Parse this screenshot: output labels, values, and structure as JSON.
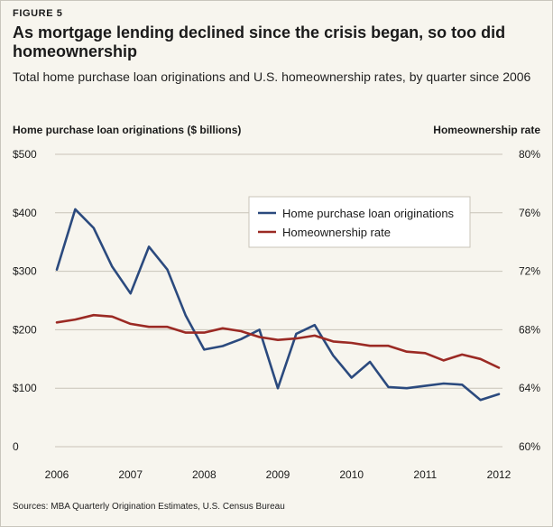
{
  "figure_label": "FIGURE 5",
  "title": "As mortgage lending declined since the crisis began, so too did homeownership",
  "subtitle": "Total home purchase loan originations and U.S. homeownership rates, by quarter since 2006",
  "source": "Sources: MBA Quarterly Origination Estimates, U.S. Census Bureau",
  "colors": {
    "originations": "#2b4a7e",
    "homeownership": "#9b2a24",
    "grid": "#c8c4b8"
  },
  "chart_data": {
    "type": "line",
    "y_left_label": "Home purchase loan originations ($ billions)",
    "y_right_label": "Homeownership rate",
    "ylim_left": [
      0,
      500
    ],
    "ylim_right": [
      60,
      80
    ],
    "xlim": [
      2006,
      2012
    ],
    "x_ticks": [
      {
        "value": 2006,
        "label": "2006"
      },
      {
        "value": 2007,
        "label": "2007"
      },
      {
        "value": 2008,
        "label": "2008"
      },
      {
        "value": 2009,
        "label": "2009"
      },
      {
        "value": 2010,
        "label": "2010"
      },
      {
        "value": 2011,
        "label": "2011"
      },
      {
        "value": 2012,
        "label": "2012"
      }
    ],
    "y_left_ticks": [
      {
        "value": 0,
        "label": "0"
      },
      {
        "value": 100,
        "label": "$100"
      },
      {
        "value": 200,
        "label": "$200"
      },
      {
        "value": 300,
        "label": "$300"
      },
      {
        "value": 400,
        "label": "$400"
      },
      {
        "value": 500,
        "label": "$500"
      }
    ],
    "y_right_ticks": [
      {
        "value": 60,
        "label": "60%"
      },
      {
        "value": 64,
        "label": "64%"
      },
      {
        "value": 68,
        "label": "68%"
      },
      {
        "value": 72,
        "label": "72%"
      },
      {
        "value": 76,
        "label": "76%"
      },
      {
        "value": 80,
        "label": "80%"
      }
    ],
    "legend_position": "upper-right",
    "series": [
      {
        "name": "Home purchase loan originations",
        "axis": "left",
        "x": [
          2006.0,
          2006.25,
          2006.5,
          2006.75,
          2007.0,
          2007.25,
          2007.5,
          2007.75,
          2008.0,
          2008.25,
          2008.5,
          2008.75,
          2009.0,
          2009.25,
          2009.5,
          2009.75,
          2010.0,
          2010.25,
          2010.5,
          2010.75,
          2011.0,
          2011.25,
          2011.5,
          2011.75,
          2012.0
        ],
        "values": [
          303,
          406,
          374,
          308,
          262,
          342,
          303,
          224,
          166,
          172,
          184,
          200,
          100,
          193,
          208,
          156,
          118,
          145,
          102,
          100,
          104,
          108,
          106,
          80,
          90
        ]
      },
      {
        "name": "Homeownership rate",
        "axis": "right",
        "x": [
          2006.0,
          2006.25,
          2006.5,
          2006.75,
          2007.0,
          2007.25,
          2007.5,
          2007.75,
          2008.0,
          2008.25,
          2008.5,
          2008.75,
          2009.0,
          2009.25,
          2009.5,
          2009.75,
          2010.0,
          2010.25,
          2010.5,
          2010.75,
          2011.0,
          2011.25,
          2011.5,
          2011.75,
          2012.0
        ],
        "values": [
          68.5,
          68.7,
          69.0,
          68.9,
          68.4,
          68.2,
          68.2,
          67.8,
          67.8,
          68.1,
          67.9,
          67.5,
          67.3,
          67.4,
          67.6,
          67.2,
          67.1,
          66.9,
          66.9,
          66.5,
          66.4,
          65.9,
          66.3,
          66.0,
          65.4
        ]
      }
    ]
  }
}
